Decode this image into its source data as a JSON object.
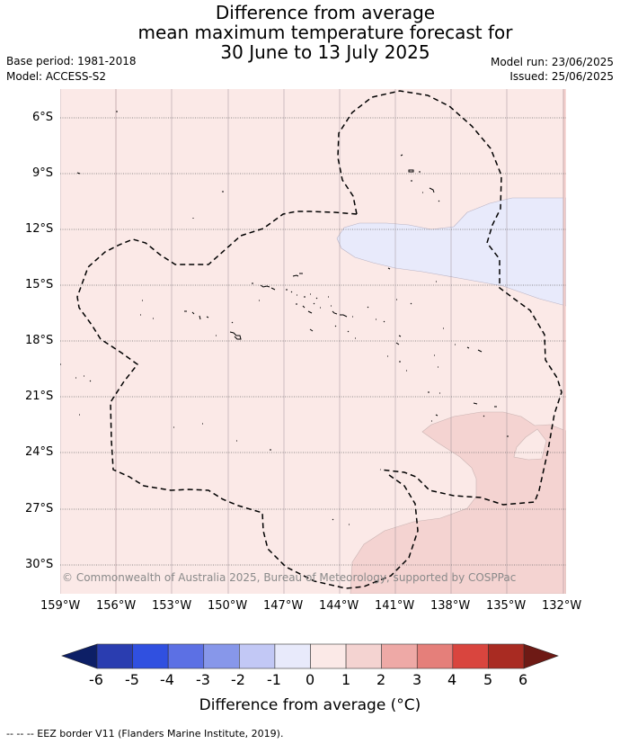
{
  "header": {
    "title_lines": [
      "Difference from average",
      "mean maximum temperature forecast for",
      "30 June to 13 July 2025"
    ],
    "base_period": "Base period: 1981-2018",
    "model": "Model: ACCESS-S2",
    "model_run": "Model run: 23/06/2025",
    "issued": "Issued: 25/06/2025"
  },
  "map": {
    "lat_labels": [
      "6°S",
      "9°S",
      "12°S",
      "15°S",
      "18°S",
      "21°S",
      "24°S",
      "27°S",
      "30°S"
    ],
    "lon_labels": [
      "159°W",
      "156°W",
      "153°W",
      "150°W",
      "147°W",
      "144°W",
      "141°W",
      "138°W",
      "135°W",
      "132°W"
    ],
    "copyright": "© Commonwealth of Australia 2025, Bureau of Meteorology, supported by COSPPac"
  },
  "colorbar": {
    "colors": [
      "#0d1f66",
      "#2a3db0",
      "#3050e0",
      "#5c70e4",
      "#8797ea",
      "#c2c8f5",
      "#e8eafb",
      "#fbe9e7",
      "#f4d3d1",
      "#eea9a6",
      "#e57f7a",
      "#d9453e",
      "#a92b22",
      "#6e1a15"
    ],
    "ticks": [
      "-6",
      "-5",
      "-4",
      "-3",
      "-2",
      "-1",
      "0",
      "1",
      "2",
      "3",
      "4",
      "5",
      "6"
    ],
    "title": "Difference from average (°C)"
  },
  "footer": {
    "legend": "--  --  -- EEZ border V11 (Flanders Marine Institute, 2019)."
  }
}
